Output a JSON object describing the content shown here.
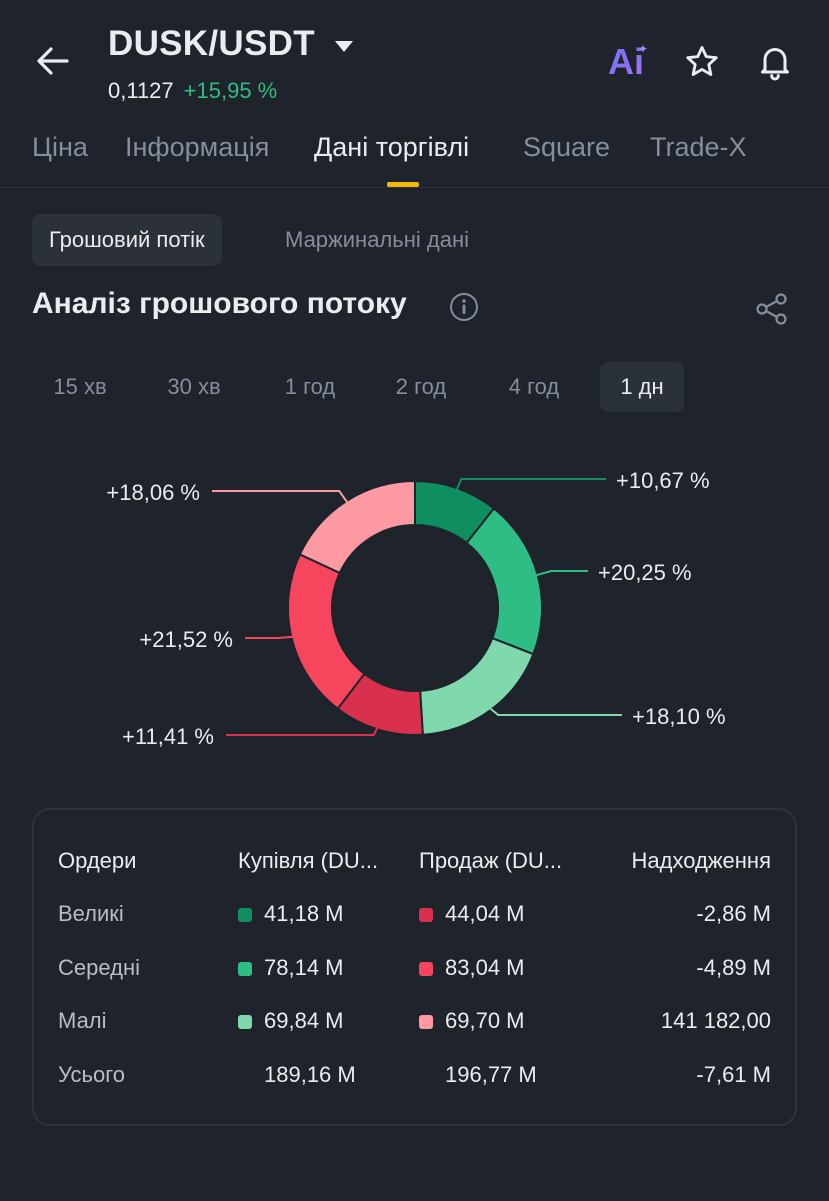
{
  "header": {
    "pair": "DUSK/USDT",
    "price": "0,1127",
    "change": "+15,95 %",
    "ai_label": "Ai",
    "icons": [
      "back-arrow-icon",
      "caret-down-icon",
      "ai-icon",
      "star-icon",
      "bell-icon"
    ]
  },
  "tabs": [
    {
      "label": "Ціна",
      "active": false
    },
    {
      "label": "Інформація",
      "active": false
    },
    {
      "label": "Дані торгівлі",
      "active": true
    },
    {
      "label": "Square",
      "active": false
    },
    {
      "label": "Trade-X",
      "active": false
    }
  ],
  "segments": [
    {
      "label": "Грошовий потік",
      "active": true
    },
    {
      "label": "Маржинальні дані",
      "active": false
    }
  ],
  "section": {
    "title": "Аналіз грошового потоку"
  },
  "periods": [
    {
      "label": "15 хв",
      "active": false
    },
    {
      "label": "30 хв",
      "active": false
    },
    {
      "label": "1 год",
      "active": false
    },
    {
      "label": "2 год",
      "active": false
    },
    {
      "label": "4 год",
      "active": false
    },
    {
      "label": "1 дн",
      "active": true
    }
  ],
  "colors": {
    "buy_large": "#0f8f5f",
    "buy_medium": "#2ebd85",
    "buy_small": "#7fd9ad",
    "sell_small": "#ff9aa2",
    "sell_medium": "#f6465d",
    "sell_large": "#d8304d",
    "accent": "#f0b90b",
    "positive": "#2ebd85"
  },
  "chart_data": {
    "type": "pie",
    "variant": "donut",
    "slices": [
      {
        "key": "buy_large",
        "value": 10.67,
        "label": "+10,67 %"
      },
      {
        "key": "buy_medium",
        "value": 20.25,
        "label": "+20,25 %"
      },
      {
        "key": "buy_small",
        "value": 18.1,
        "label": "+18,10 %"
      },
      {
        "key": "sell_large",
        "value": 11.41,
        "label": "+11,41 %"
      },
      {
        "key": "sell_medium",
        "value": 21.52,
        "label": "+21,52 %"
      },
      {
        "key": "sell_small",
        "value": 18.06,
        "label": "+18,06 %"
      }
    ]
  },
  "table": {
    "headers": [
      "Ордери",
      "Купівля (DU...",
      "Продаж (DU...",
      "Надходження"
    ],
    "rows": [
      {
        "label": "Великі",
        "buy": "41,18 M",
        "sell": "44,04 M",
        "inflow": "-2,86 M"
      },
      {
        "label": "Середні",
        "buy": "78,14 M",
        "sell": "83,04 M",
        "inflow": "-4,89 M"
      },
      {
        "label": "Малі",
        "buy": "69,84 M",
        "sell": "69,70 M",
        "inflow": "141 182,00"
      },
      {
        "label": "Усього",
        "buy": "189,16 M",
        "sell": "196,77 M",
        "inflow": "-7,61 M"
      }
    ]
  }
}
